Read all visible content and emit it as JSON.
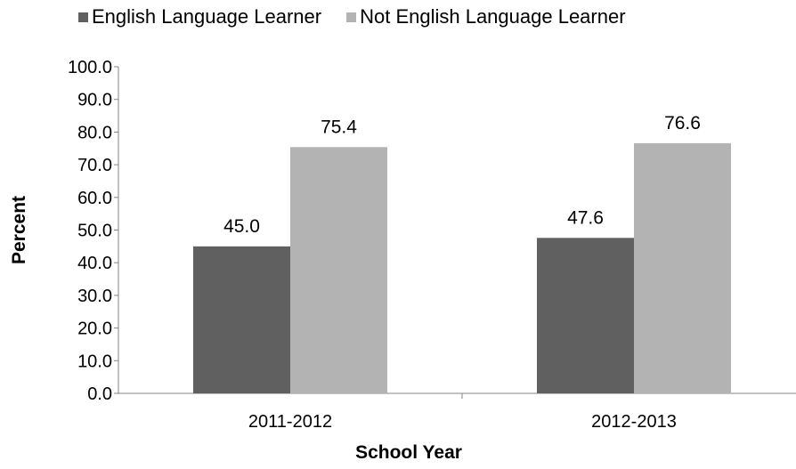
{
  "chart_data": {
    "type": "bar",
    "title": "",
    "xlabel": "School Year",
    "ylabel": "Percent",
    "categories": [
      "2011-2012",
      "2012-2013"
    ],
    "series": [
      {
        "name": "English Language Learner",
        "color": "#606060",
        "values": [
          45.0,
          47.6
        ],
        "labels": [
          "45.0",
          "47.6"
        ]
      },
      {
        "name": "Not English Language Learner",
        "color": "#b3b3b3",
        "values": [
          75.4,
          76.6
        ],
        "labels": [
          "75.4",
          "76.6"
        ]
      }
    ],
    "ylim": [
      0,
      100
    ],
    "yticks": [
      "0.0",
      "10.0",
      "20.0",
      "30.0",
      "40.0",
      "50.0",
      "60.0",
      "70.0",
      "80.0",
      "90.0",
      "100.0"
    ],
    "legend_position": "top",
    "grid": false
  }
}
